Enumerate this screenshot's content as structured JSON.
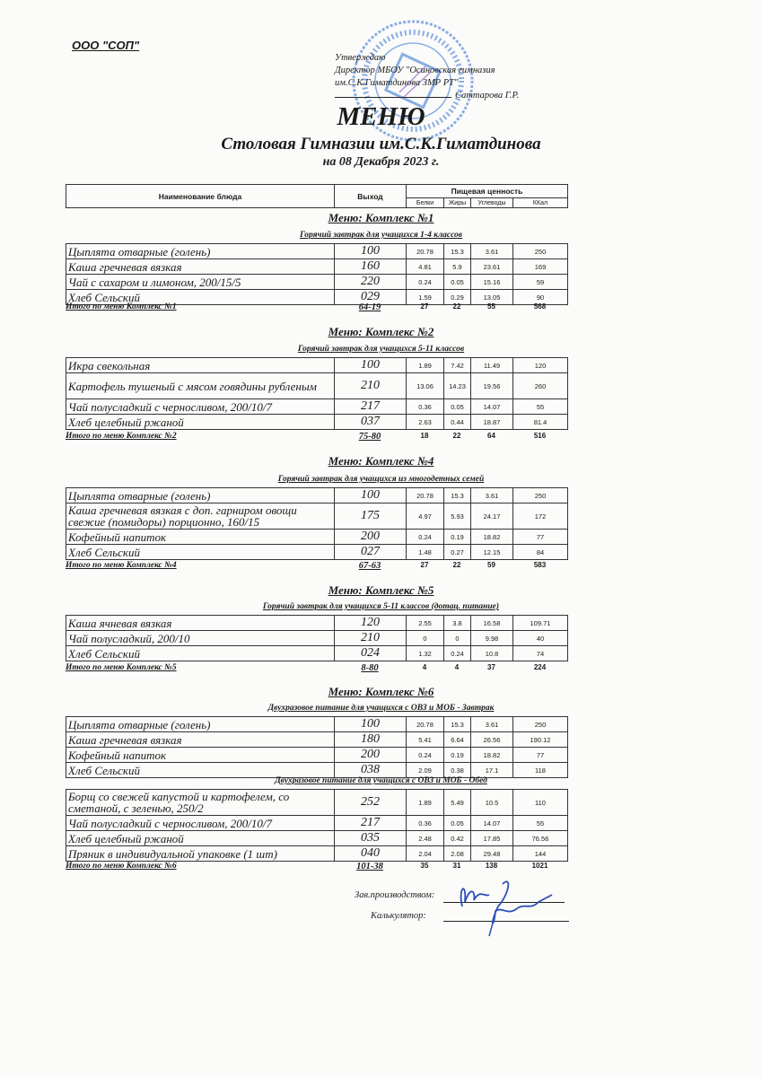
{
  "header": {
    "organization": "ООО \"СОП\"",
    "approval": [
      "Утверждаю",
      "Директор МБОУ \"Осиновская гимназия",
      "им.С.К.Гиматдинова ЗМР РТ\""
    ],
    "approver_name": "Саттарова Г.Р.",
    "title": "МЕНЮ",
    "subtitle": "Столовая Гимназии им.С.К.Гиматдинова",
    "date": "на 08 Декабря 2023 г."
  },
  "columns": {
    "name": "Наименование блюда",
    "output": "Выход",
    "nutrition": "Пищевая ценность",
    "protein": "Белки",
    "fat": "Жиры",
    "carbs": "Углеводы",
    "kcal": "ККал"
  },
  "sections": [
    {
      "title": "Меню: Комплекс №1",
      "groups": [
        {
          "subtitle": "Горячий завтрак для учащихся 1-4 классов",
          "rows": [
            [
              "Цыплята отварные (голень)",
              "100",
              "20.78",
              "15.3",
              "3.61",
              "250"
            ],
            [
              "Каша гречневая вязкая",
              "160",
              "4.81",
              "5.9",
              "23.61",
              "169"
            ],
            [
              "Чай с сахаром и лимоном, 200/15/5",
              "220",
              "0.24",
              "0.05",
              "15.16",
              "59"
            ],
            [
              "Хлеб Сельский",
              "029",
              "1.59",
              "0.29",
              "13.05",
              "90"
            ]
          ]
        }
      ],
      "total": [
        "Итого по меню Комплекс №1",
        "64-19",
        "27",
        "22",
        "55",
        "568"
      ]
    },
    {
      "title": "Меню: Комплекс №2",
      "groups": [
        {
          "subtitle": "Горячий завтрак для учащихся 5-11 классов",
          "rows": [
            [
              "Икра свекольная",
              "100",
              "1.89",
              "7.42",
              "11.49",
              "120"
            ],
            [
              "Картофель тушеный с мясом говядины рубленым",
              "210",
              "13.06",
              "14.23",
              "19.56",
              "260"
            ],
            [
              "Чай полусладкий с черносливом, 200/10/7",
              "217",
              "0.36",
              "0.05",
              "14.07",
              "55"
            ],
            [
              "Хлеб  целебный ржаной",
              "037",
              "2.63",
              "0.44",
              "18.87",
              "81.4"
            ]
          ]
        }
      ],
      "total": [
        "Итого по меню Комплекс №2",
        "75-80",
        "18",
        "22",
        "64",
        "516"
      ]
    },
    {
      "title": "Меню: Комплекс №4",
      "groups": [
        {
          "subtitle": "Горячий завтрак для учащихся из многодетных семей",
          "rows": [
            [
              "Цыплята отварные (голень)",
              "100",
              "20.78",
              "15.3",
              "3.61",
              "250"
            ],
            [
              "Каша гречневая вязкая с доп. гарниром овощи свежие (помидоры) порционно, 160/15",
              "175",
              "4.97",
              "5.93",
              "24.17",
              "172"
            ],
            [
              "Кофейный напиток",
              "200",
              "0.24",
              "0.19",
              "18.82",
              "77"
            ],
            [
              "Хлеб Сельский",
              "027",
              "1.48",
              "0.27",
              "12.15",
              "84"
            ]
          ]
        }
      ],
      "total": [
        "Итого по меню Комплекс №4",
        "67-63",
        "27",
        "22",
        "59",
        "583"
      ]
    },
    {
      "title": "Меню: Комплекс №5",
      "groups": [
        {
          "subtitle": "Горячий завтрак для учащихся 5-11 классов (дотац. питание)",
          "rows": [
            [
              "Каша ячневая вязкая",
              "120",
              "2.55",
              "3.8",
              "16.58",
              "109.71"
            ],
            [
              "Чай полусладкий, 200/10",
              "210",
              "0",
              "0",
              "9.98",
              "40"
            ],
            [
              "Хлеб Сельский",
              "024",
              "1.32",
              "0.24",
              "10.8",
              "74"
            ]
          ]
        }
      ],
      "total": [
        "Итого по меню Комплекс №5",
        "8-80",
        "4",
        "4",
        "37",
        "224"
      ]
    },
    {
      "title": "Меню: Комплекс №6",
      "groups": [
        {
          "subtitle": "Двухразовое питание для учащихся с ОВЗ и МОБ - Завтрак",
          "rows": [
            [
              "Цыплята отварные (голень)",
              "100",
              "20.78",
              "15.3",
              "3.61",
              "250"
            ],
            [
              "Каша гречневая вязкая",
              "180",
              "5.41",
              "6.64",
              "26.56",
              "190.12"
            ],
            [
              "Кофейный напиток",
              "200",
              "0.24",
              "0.19",
              "18.82",
              "77"
            ],
            [
              "Хлеб Сельский",
              "038",
              "2.09",
              "0.38",
              "17.1",
              "118"
            ]
          ]
        },
        {
          "subtitle": "Двухразовое питание для учащихся с ОВЗ и МОБ - Обед",
          "rows": [
            [
              "Борщ со свежей капустой и картофелем, со сметаной, с зеленью, 250/2",
              "252",
              "1.89",
              "5.49",
              "10.5",
              "110"
            ],
            [
              "Чай полусладкий с черносливом, 200/10/7",
              "217",
              "0.36",
              "0.05",
              "14.07",
              "55"
            ],
            [
              "Хлеб  целебный ржаной",
              "035",
              "2.48",
              "0.42",
              "17.85",
              "76.56"
            ],
            [
              "Пряник в индивидуальной упаковке (1 шт)",
              "040",
              "2.04",
              "2.08",
              "29.48",
              "144"
            ]
          ]
        }
      ],
      "total": [
        "Итого по меню Комплекс №6",
        "101-38",
        "35",
        "31",
        "138",
        "1021"
      ]
    }
  ],
  "signatures": {
    "production_head": "Зав.производством:",
    "calculator": "Калькулятор:"
  },
  "colors": {
    "stamp": "#2f6fd6",
    "ink": "#1a1a1a"
  }
}
